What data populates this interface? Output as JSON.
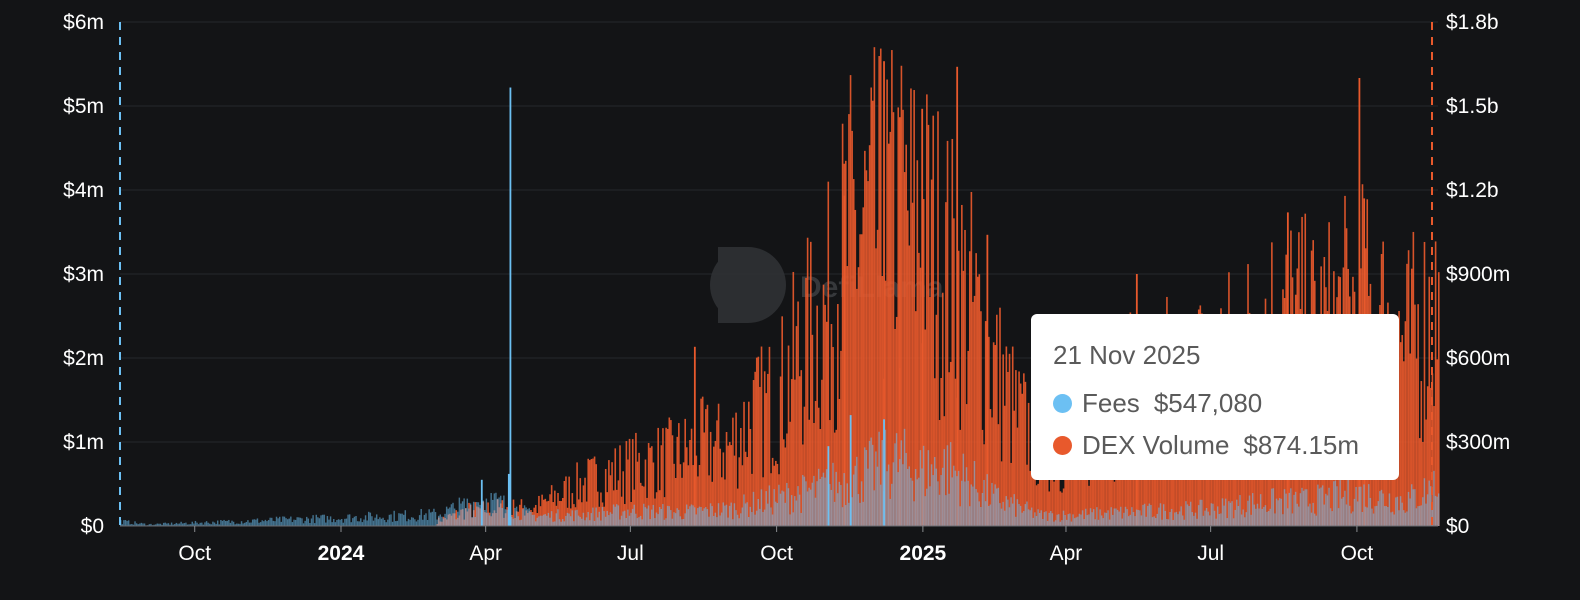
{
  "chart_data": {
    "type": "bar",
    "x_range": [
      "2023-08-15",
      "2025-11-21"
    ],
    "y_left": {
      "ticks": [
        "$0",
        "$1m",
        "$2m",
        "$3m",
        "$4m",
        "$5m",
        "$6m"
      ],
      "max": 6000000
    },
    "y_right": {
      "ticks": [
        "$0",
        "$300m",
        "$600m",
        "$900m",
        "$1.2b",
        "$1.5b",
        "$1.8b"
      ],
      "max": 1800000000
    },
    "x_ticks": [
      {
        "label": "Oct",
        "date": "2023-10-01",
        "bold": false
      },
      {
        "label": "2024",
        "date": "2024-01-01",
        "bold": true
      },
      {
        "label": "Apr",
        "date": "2024-04-01",
        "bold": false
      },
      {
        "label": "Jul",
        "date": "2024-07-01",
        "bold": false
      },
      {
        "label": "Oct",
        "date": "2024-10-01",
        "bold": false
      },
      {
        "label": "2025",
        "date": "2025-01-01",
        "bold": true
      },
      {
        "label": "Apr",
        "date": "2025-04-01",
        "bold": false
      },
      {
        "label": "Jul",
        "date": "2025-07-01",
        "bold": false
      },
      {
        "label": "Oct",
        "date": "2025-10-01",
        "bold": false
      }
    ],
    "grid": true,
    "series": [
      {
        "name": "DEX Volume",
        "axis": "right",
        "color": "#e8592c",
        "points": [
          [
            "2024-03-01",
            20000000
          ],
          [
            "2024-03-20",
            60000000
          ],
          [
            "2024-04-10",
            70000000
          ],
          [
            "2024-05-01",
            70000000
          ],
          [
            "2024-06-01",
            170000000
          ],
          [
            "2024-07-01",
            230000000
          ],
          [
            "2024-08-01",
            280000000
          ],
          [
            "2024-08-15",
            320000000
          ],
          [
            "2024-09-01",
            310000000
          ],
          [
            "2024-09-15",
            430000000
          ],
          [
            "2024-10-01",
            500000000
          ],
          [
            "2024-10-15",
            680000000
          ],
          [
            "2024-11-01",
            830000000
          ],
          [
            "2024-11-15",
            1140000000
          ],
          [
            "2024-12-01",
            1190000000
          ],
          [
            "2024-12-15",
            1220000000
          ],
          [
            "2025-01-01",
            1170000000
          ],
          [
            "2025-01-15",
            1040000000
          ],
          [
            "2025-02-01",
            840000000
          ],
          [
            "2025-02-15",
            620000000
          ],
          [
            "2025-03-01",
            430000000
          ],
          [
            "2025-03-15",
            340000000
          ],
          [
            "2025-04-01",
            290000000
          ],
          [
            "2025-04-15",
            340000000
          ],
          [
            "2025-05-01",
            450000000
          ],
          [
            "2025-05-15",
            560000000
          ],
          [
            "2025-06-01",
            580000000
          ],
          [
            "2025-06-15",
            560000000
          ],
          [
            "2025-07-01",
            640000000
          ],
          [
            "2025-07-15",
            660000000
          ],
          [
            "2025-08-01",
            760000000
          ],
          [
            "2025-08-15",
            830000000
          ],
          [
            "2025-09-01",
            760000000
          ],
          [
            "2025-09-15",
            780000000
          ],
          [
            "2025-10-01",
            870000000
          ],
          [
            "2025-10-15",
            810000000
          ],
          [
            "2025-11-01",
            700000000
          ],
          [
            "2025-11-21",
            874150000
          ]
        ],
        "spikes": [
          [
            "2024-08-10",
            640000000
          ],
          [
            "2024-12-07",
            1660000000
          ],
          [
            "2025-01-22",
            1640000000
          ],
          [
            "2024-12-31",
            1490000000
          ],
          [
            "2024-12-17",
            1460000000
          ],
          [
            "2024-11-12",
            1180000000
          ],
          [
            "2025-08-18",
            1120000000
          ],
          [
            "2025-10-02",
            1600000000
          ],
          [
            "2025-10-05",
            1170000000
          ],
          [
            "2025-02-10",
            1040000000
          ],
          [
            "2025-05-15",
            900000000
          ]
        ]
      },
      {
        "name": "Fees",
        "axis": "left",
        "color": "#6cc0f3",
        "points": [
          [
            "2023-08-15",
            60000
          ],
          [
            "2023-09-01",
            20000
          ],
          [
            "2024-03-01",
            150000
          ],
          [
            "2024-04-01",
            350000
          ],
          [
            "2024-05-01",
            130000
          ],
          [
            "2024-06-01",
            150000
          ],
          [
            "2024-07-01",
            200000
          ],
          [
            "2024-08-01",
            180000
          ],
          [
            "2024-09-01",
            220000
          ],
          [
            "2024-10-01",
            360000
          ],
          [
            "2024-10-15",
            420000
          ],
          [
            "2024-11-01",
            520000
          ],
          [
            "2024-11-15",
            600000
          ],
          [
            "2024-12-01",
            760000
          ],
          [
            "2024-12-15",
            850000
          ],
          [
            "2025-01-01",
            720000
          ],
          [
            "2025-01-15",
            780000
          ],
          [
            "2025-02-01",
            560000
          ],
          [
            "2025-02-15",
            360000
          ],
          [
            "2025-03-15",
            140000
          ],
          [
            "2025-04-01",
            140000
          ],
          [
            "2025-05-01",
            170000
          ],
          [
            "2025-06-01",
            200000
          ],
          [
            "2025-07-01",
            220000
          ],
          [
            "2025-08-01",
            310000
          ],
          [
            "2025-09-01",
            330000
          ],
          [
            "2025-10-01",
            420000
          ],
          [
            "2025-11-01",
            330000
          ],
          [
            "2025-11-21",
            547080
          ]
        ],
        "spikes": [
          [
            "2024-04-16",
            5220000
          ],
          [
            "2024-04-15",
            620000
          ],
          [
            "2024-03-29",
            550000
          ],
          [
            "2024-11-16",
            1320000
          ],
          [
            "2024-12-07",
            1270000
          ],
          [
            "2024-11-02",
            950000
          ]
        ]
      }
    ],
    "tooltip": {
      "date": "21 Nov 2025",
      "rows": [
        {
          "color": "#6cc0f3",
          "label": "Fees",
          "value": "$547,080"
        },
        {
          "color": "#e8592c",
          "label": "DEX Volume",
          "value": "$874.15m"
        }
      ]
    }
  },
  "watermark": {
    "text": "DefiLlama"
  }
}
